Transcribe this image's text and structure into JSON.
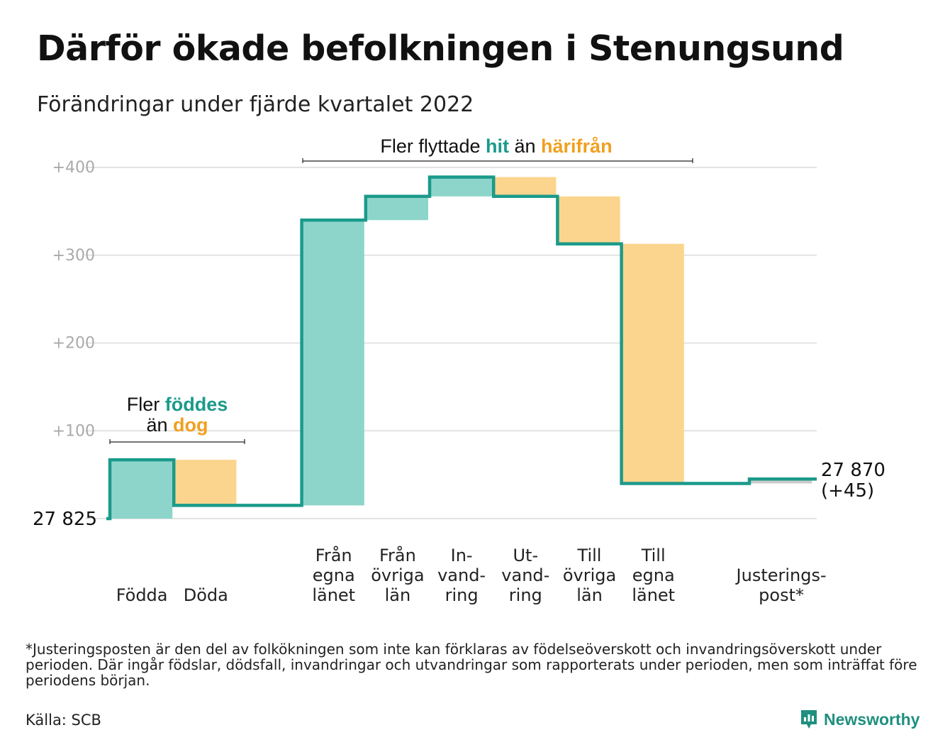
{
  "title": "Därför ökade befolkningen i Stenungsund",
  "subtitle": "Förändringar under fjärde kvartalet 2022",
  "footnote": "*Justeringsposten är den del av folkökningen som inte kan förklaras av födelseöverskott och invandringsöverskott under perioden. Där ingår födslar, dödsfall, invandringar och utvandringar som rapporterats under perioden, men som inträffat före periodens början.",
  "source": "Källa: SCB",
  "brand": "Newsworthy",
  "colors": {
    "increase": "#8dd5cb",
    "decrease": "#fbd58d",
    "adjustment": "#cccccc",
    "line": "#1b9a8a",
    "grid": "#e3e3e3"
  },
  "annotations": {
    "births": {
      "line1_pre": "Fler ",
      "line1_hl": "föddes",
      "line2_pre": "än ",
      "line2_hl": "dog"
    },
    "moves": {
      "pre": "Fler flyttade ",
      "hl1": "hit",
      "mid": " än ",
      "hl2": "härifrån"
    }
  },
  "chart_data": {
    "type": "waterfall",
    "title": "Därför ökade befolkningen i Stenungsund",
    "subtitle": "Förändringar under fjärde kvartalet 2022",
    "start_value": 27825,
    "start_label": "27 825",
    "end_value": 27870,
    "end_label": "27 870",
    "end_change_label": "(+45)",
    "y_axis": {
      "range": [
        0,
        400
      ],
      "ticks": [
        100,
        200,
        300,
        400
      ],
      "tick_labels": [
        "+100",
        "+200",
        "+300",
        "+400"
      ],
      "grid": true
    },
    "steps": [
      {
        "label_lines": [
          "Födda"
        ],
        "change": 67,
        "kind": "increase"
      },
      {
        "label_lines": [
          "Döda"
        ],
        "change": -52,
        "kind": "decrease"
      },
      {
        "label_lines": [],
        "change": 0,
        "kind": "gap"
      },
      {
        "label_lines": [
          "Från",
          "egna",
          "länet"
        ],
        "change": 325,
        "kind": "increase"
      },
      {
        "label_lines": [
          "Från",
          "övriga",
          "län"
        ],
        "change": 27,
        "kind": "increase"
      },
      {
        "label_lines": [
          "In-",
          "vand-",
          "ring"
        ],
        "change": 22,
        "kind": "increase"
      },
      {
        "label_lines": [
          "Ut-",
          "vand-",
          "ring"
        ],
        "change": -22,
        "kind": "decrease"
      },
      {
        "label_lines": [
          "Till",
          "övriga",
          "län"
        ],
        "change": -54,
        "kind": "decrease"
      },
      {
        "label_lines": [
          "Till",
          "egna",
          "länet"
        ],
        "change": -273,
        "kind": "decrease"
      },
      {
        "label_lines": [],
        "change": 0,
        "kind": "gap"
      },
      {
        "label_lines": [
          "Justerings-",
          "post*"
        ],
        "change": 5,
        "kind": "adjustment"
      }
    ]
  }
}
